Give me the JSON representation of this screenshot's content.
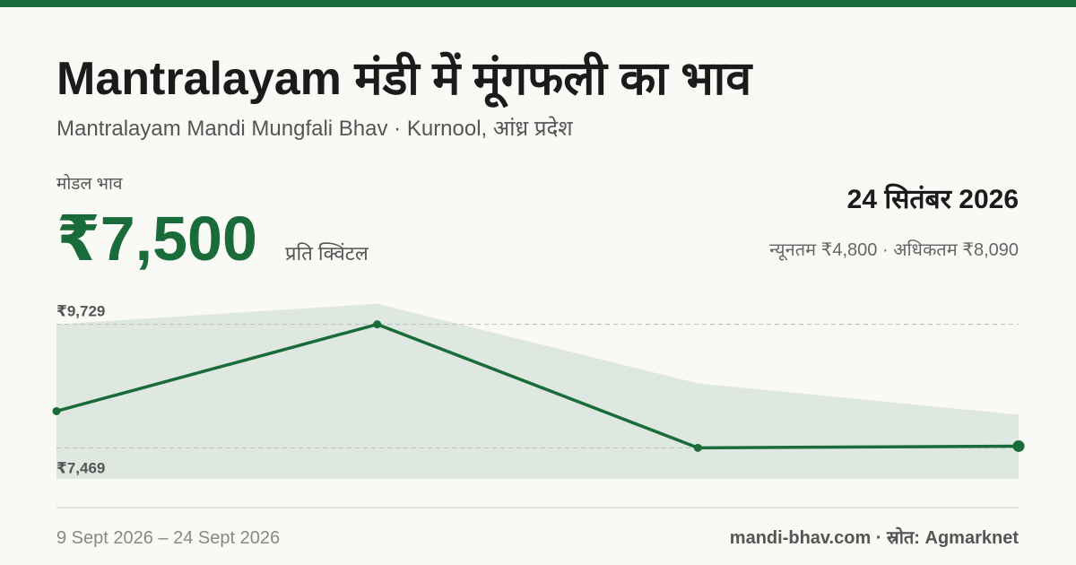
{
  "chart_data": {
    "type": "line",
    "title": "Mantralayam मंडी में मूंगफली का भाव",
    "subtitle": "Mantralayam Mandi Mungfali Bhav · Kurnool, आंध्र प्रदेश",
    "metric_label": "मोडल भाव",
    "metric_value": "₹7,500",
    "metric_unit": "प्रति क्विंटल",
    "date": "24 सितंबर 2026",
    "range_text": "न्यूनतम ₹4,800 · अधिकतम ₹8,090",
    "period": "9 Sept 2026 – 24 Sept 2026",
    "source": "mandi-bhav.com · स्रोत: Agmarknet",
    "categories": [
      null,
      null,
      null,
      null
    ],
    "line": {
      "color": "#1a6b3a",
      "values": [
        8140,
        9729,
        7469,
        7500
      ]
    },
    "band": {
      "color": "#dfe8e0",
      "values": [
        9729,
        10106,
        8648,
        8075
      ]
    },
    "ylim": [
      6900,
      10150
    ],
    "yticks": [
      {
        "value": 9729,
        "label": "₹9,729"
      },
      {
        "value": 7469,
        "label": "₹7,469"
      }
    ],
    "grid": true
  }
}
